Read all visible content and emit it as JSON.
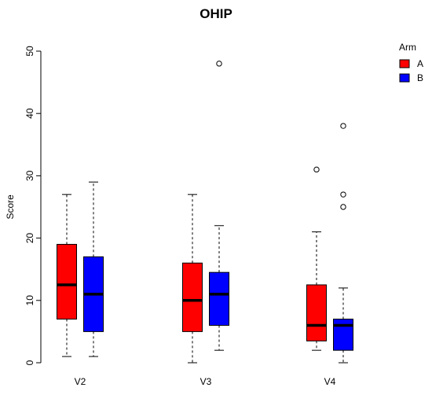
{
  "chart_data": {
    "type": "boxplot",
    "title": "OHIP",
    "xlabel": "",
    "ylabel": "Score",
    "ylim": [
      0,
      50
    ],
    "yticks": [
      0,
      10,
      20,
      30,
      40,
      50
    ],
    "categories": [
      "V2",
      "V3",
      "V4"
    ],
    "legend": {
      "title": "Arm",
      "placement": "top-right",
      "entries": [
        "A",
        "B"
      ]
    },
    "series": [
      {
        "name": "A",
        "color": "#ff0000",
        "boxes": [
          {
            "category": "V2",
            "whisker_low": 1,
            "q1": 7,
            "median": 12.5,
            "q3": 19,
            "whisker_high": 27,
            "outliers": []
          },
          {
            "category": "V3",
            "whisker_low": 0,
            "q1": 5,
            "median": 10,
            "q3": 16,
            "whisker_high": 27,
            "outliers": []
          },
          {
            "category": "V4",
            "whisker_low": 2,
            "q1": 3.5,
            "median": 6,
            "q3": 12.5,
            "whisker_high": 21,
            "outliers": [
              31
            ]
          }
        ]
      },
      {
        "name": "B",
        "color": "#0000ff",
        "boxes": [
          {
            "category": "V2",
            "whisker_low": 1,
            "q1": 5,
            "median": 11,
            "q3": 17,
            "whisker_high": 29,
            "outliers": []
          },
          {
            "category": "V3",
            "whisker_low": 2,
            "q1": 6,
            "median": 11,
            "q3": 14.5,
            "whisker_high": 22,
            "outliers": [
              48
            ]
          },
          {
            "category": "V4",
            "whisker_low": 0,
            "q1": 2,
            "median": 6,
            "q3": 7,
            "whisker_high": 12,
            "outliers": [
              25,
              27,
              38
            ]
          }
        ]
      }
    ]
  }
}
